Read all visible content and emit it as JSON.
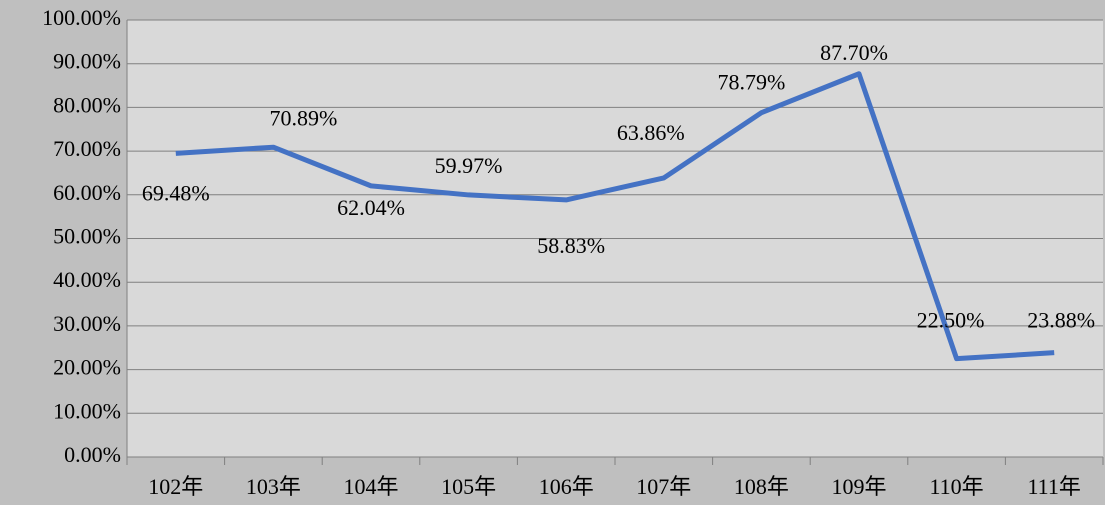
{
  "chart_data": {
    "type": "line",
    "categories": [
      "102年",
      "103年",
      "104年",
      "105年",
      "106年",
      "107年",
      "108年",
      "109年",
      "110年",
      "111年"
    ],
    "series": [
      {
        "color": "#4472c4",
        "values": [
          69.48,
          70.89,
          62.04,
          59.97,
          58.83,
          63.86,
          78.79,
          87.7,
          22.5,
          23.88
        ],
        "value_labels": [
          "69.48%",
          "70.89%",
          "62.04%",
          "59.97%",
          "58.83%",
          "63.86%",
          "78.79%",
          "87.70%",
          "22.50%",
          "23.88%"
        ]
      }
    ],
    "ylim": [
      0,
      100
    ],
    "yticks": [
      {
        "value": 0,
        "label": "0.00%"
      },
      {
        "value": 10,
        "label": "10.00%"
      },
      {
        "value": 20,
        "label": "20.00%"
      },
      {
        "value": 30,
        "label": "30.00%"
      },
      {
        "value": 40,
        "label": "40.00%"
      },
      {
        "value": 50,
        "label": "50.00%"
      },
      {
        "value": 60,
        "label": "60.00%"
      },
      {
        "value": 70,
        "label": "70.00%"
      },
      {
        "value": 80,
        "label": "80.00%"
      },
      {
        "value": 90,
        "label": "90.00%"
      },
      {
        "value": 100,
        "label": "100.00%"
      }
    ],
    "grid": true
  }
}
